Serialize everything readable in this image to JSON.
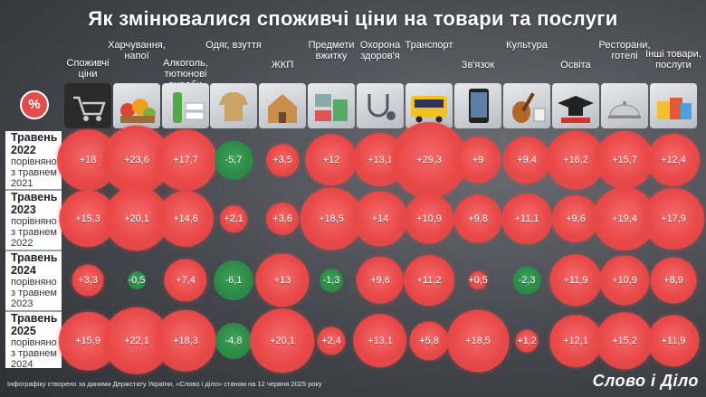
{
  "title": "Як змінювалися споживчі ціни на товари та послуги",
  "badge": "%",
  "footer": "Інфографіку створено за даними Держстату України, «Слово і діло» станом на 12 червня 2025 року",
  "brand": "Слово і Діло",
  "colors": {
    "increase": "#e94848",
    "decrease": "#2b8a46"
  },
  "chart_data": {
    "type": "table",
    "categories": [
      {
        "label": "Споживчі ціни",
        "icon": "shopping-cart-icon"
      },
      {
        "label": "Харчування, напої",
        "icon": "food-basket-icon"
      },
      {
        "label": "Алкоголь, тютюнові вироби",
        "icon": "bottle-icon"
      },
      {
        "label": "Одяг, взуття",
        "icon": "clothes-icon"
      },
      {
        "label": "ЖКП",
        "icon": "house-icon"
      },
      {
        "label": "Предмети вжитку",
        "icon": "appliances-icon"
      },
      {
        "label": "Охорона здоров'я",
        "icon": "stethoscope-icon"
      },
      {
        "label": "Транспорт",
        "icon": "bus-icon"
      },
      {
        "label": "Зв'язок",
        "icon": "smartphone-icon"
      },
      {
        "label": "Культура",
        "icon": "guitar-icon"
      },
      {
        "label": "Освіта",
        "icon": "graduation-cap-icon"
      },
      {
        "label": "Ресторани, готелі",
        "icon": "restaurant-icon"
      },
      {
        "label": "Інші товари, послуги",
        "icon": "shopping-bags-icon"
      }
    ],
    "rows": [
      {
        "year": "Травень 2022",
        "sub": "порівняно з травнем 2021",
        "values": [
          18,
          23.6,
          17.7,
          -5.7,
          3.5,
          12,
          13.1,
          29.3,
          9,
          9.4,
          16.2,
          15.7,
          12.4
        ],
        "labels": [
          "+18",
          "+23,6",
          "+17,7",
          "-5,7",
          "+3,5",
          "+12",
          "+13,1",
          "+29,3",
          "+9",
          "+9,4",
          "+16,2",
          "+15,7",
          "+12,4"
        ]
      },
      {
        "year": "Травень 2023",
        "sub": "порівняно з травнем 2022",
        "values": [
          15.3,
          20.1,
          14.6,
          2.1,
          3.6,
          18.5,
          14,
          10.9,
          9.8,
          11.1,
          9.6,
          19.4,
          17.9
        ],
        "labels": [
          "+15,3",
          "+20,1",
          "+14,6",
          "+2,1",
          "+3,6",
          "+18,5",
          "+14",
          "+10,9",
          "+9,8",
          "+11,1",
          "+9,6",
          "+19,4",
          "+17,9"
        ]
      },
      {
        "year": "Травень 2024",
        "sub": "порівняно з травнем 2023",
        "values": [
          3.3,
          -0.5,
          7.4,
          -6.1,
          13,
          -1.3,
          9.6,
          11.2,
          0.5,
          -2.3,
          11.9,
          10.9,
          8.9
        ],
        "labels": [
          "+3,3",
          "-0,5",
          "+7,4",
          "-6,1",
          "+13",
          "-1,3",
          "+9,6",
          "+11,2",
          "+0,5",
          "-2,3",
          "+11,9",
          "+10,9",
          "+8,9"
        ]
      },
      {
        "year": "Травень 2025",
        "sub": "порівняно з травнем 2024",
        "values": [
          15.9,
          22.1,
          18.3,
          -4.8,
          20.1,
          2.4,
          13.1,
          5.8,
          18.5,
          1.2,
          12.1,
          15.2,
          11.9
        ],
        "labels": [
          "+15,9",
          "+22,1",
          "+18,3",
          "-4,8",
          "+20,1",
          "+2,4",
          "+13,1",
          "+5,8",
          "+18,5",
          "+1,2",
          "+12,1",
          "+15,2",
          "+11,9"
        ]
      }
    ]
  }
}
